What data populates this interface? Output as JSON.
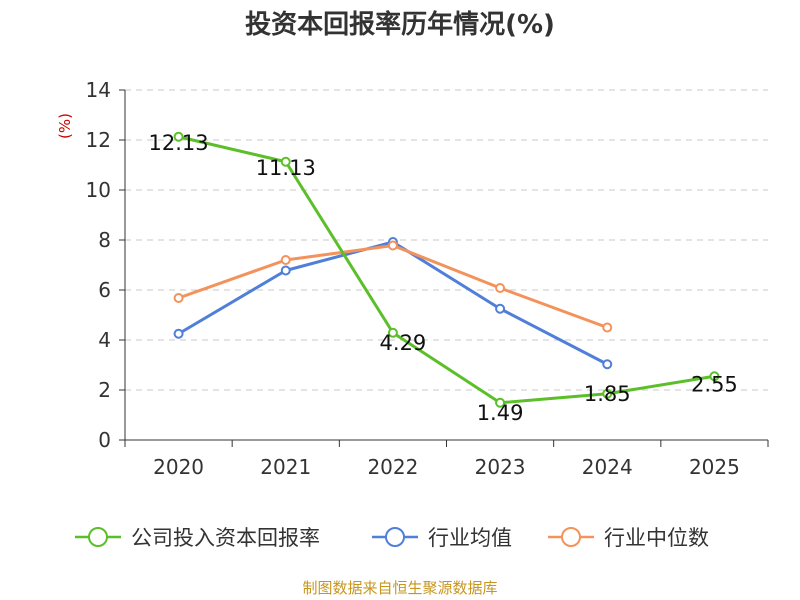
{
  "chart_data": {
    "type": "line",
    "title": "投资本回报率历年情况(%)",
    "ylabel": "(%)",
    "xlabel": "",
    "categories": [
      "2020",
      "2021",
      "2022",
      "2023",
      "2024",
      "2025"
    ],
    "ylim": [
      0,
      14
    ],
    "yticks": [
      0,
      2,
      4,
      6,
      8,
      10,
      12,
      14
    ],
    "grid": true,
    "legend_position": "bottom",
    "series": [
      {
        "name": "公司投入资本回报率",
        "color": "#5cbf2a",
        "values": [
          12.13,
          11.13,
          4.29,
          1.49,
          1.85,
          2.55
        ],
        "labels": [
          "12.13",
          "11.13",
          "4.29",
          "1.49",
          "1.85",
          "2.55"
        ]
      },
      {
        "name": "行业均值",
        "color": "#4f7fd8",
        "values": [
          4.25,
          6.78,
          7.92,
          5.25,
          3.03,
          null
        ]
      },
      {
        "name": "行业中位数",
        "color": "#f4925b",
        "values": [
          5.68,
          7.2,
          7.78,
          6.08,
          4.5,
          null
        ]
      }
    ]
  },
  "footer": {
    "source": "制图数据来自恒生聚源数据库"
  }
}
